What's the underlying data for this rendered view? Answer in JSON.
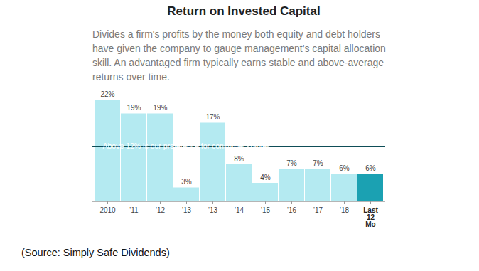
{
  "chart_data": {
    "type": "bar",
    "title": "Return on Invested Capital",
    "subtitle": "Divides a firm's profits by the money both equity and debt holders have given the company to gauge management's capital allocation skill. An advantaged firm typically earns stable and above-average returns over time.",
    "categories": [
      "2010",
      "'11",
      "'12",
      "'13",
      "'13",
      "'14",
      "'15",
      "'16",
      "'17",
      "'18",
      "Last 12 Mo"
    ],
    "values": [
      22,
      19,
      19,
      3,
      17,
      8,
      4,
      7,
      7,
      6,
      6
    ],
    "value_labels": [
      "22%",
      "19%",
      "19%",
      "3%",
      "17%",
      "8%",
      "4%",
      "7%",
      "7%",
      "6%",
      "6%"
    ],
    "data_labels": true,
    "colors": [
      "#b4eaf1",
      "#b4eaf1",
      "#b4eaf1",
      "#b4eaf1",
      "#b4eaf1",
      "#b4eaf1",
      "#b4eaf1",
      "#b4eaf1",
      "#b4eaf1",
      "#b4eaf1",
      "#1ba1b2"
    ],
    "ylim": [
      0,
      22
    ],
    "yticks": [],
    "tick_labels": "x",
    "annotations": [
      {
        "y": 12,
        "text": "Above 12% is our preference for consumer staples"
      }
    ],
    "caption": "(Source: Simply Safe Dividends)"
  }
}
